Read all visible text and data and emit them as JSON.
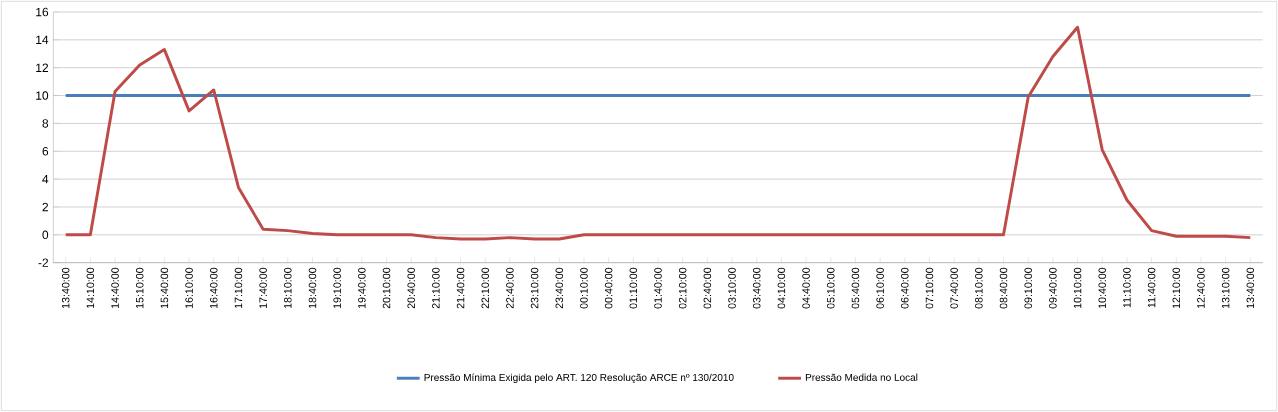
{
  "chart_data": {
    "type": "line",
    "categories": [
      "13:40:00",
      "14:10:00",
      "14:40:00",
      "15:10:00",
      "15:40:00",
      "16:10:00",
      "16:40:00",
      "17:10:00",
      "17:40:00",
      "18:10:00",
      "18:40:00",
      "19:10:00",
      "19:40:00",
      "20:10:00",
      "20:40:00",
      "21:10:00",
      "21:40:00",
      "22:10:00",
      "22:40:00",
      "23:10:00",
      "23:40:00",
      "00:10:00",
      "00:40:00",
      "01:10:00",
      "01:40:00",
      "02:10:00",
      "02:40:00",
      "03:10:00",
      "03:40:00",
      "04:10:00",
      "04:40:00",
      "05:10:00",
      "05:40:00",
      "06:10:00",
      "06:40:00",
      "07:10:00",
      "07:40:00",
      "08:10:00",
      "08:40:00",
      "09:10:00",
      "09:40:00",
      "10:10:00",
      "10:40:00",
      "11:10:00",
      "11:40:00",
      "12:10:00",
      "12:40:00",
      "13:10:00",
      "13:40:00"
    ],
    "series": [
      {
        "name": "Pressão Mínima  Exigida pelo ART. 120 Resolução ARCE nº 130/2010",
        "color": "#4a7ebb",
        "values": [
          10,
          10,
          10,
          10,
          10,
          10,
          10,
          10,
          10,
          10,
          10,
          10,
          10,
          10,
          10,
          10,
          10,
          10,
          10,
          10,
          10,
          10,
          10,
          10,
          10,
          10,
          10,
          10,
          10,
          10,
          10,
          10,
          10,
          10,
          10,
          10,
          10,
          10,
          10,
          10,
          10,
          10,
          10,
          10,
          10,
          10,
          10,
          10,
          10
        ]
      },
      {
        "name": "Pressão Medida no Local",
        "color": "#be4b48",
        "values": [
          0,
          0,
          10.3,
          12.2,
          13.3,
          8.9,
          10.4,
          3.4,
          0.4,
          0.3,
          0.1,
          0,
          0,
          0,
          0,
          -0.2,
          -0.3,
          -0.3,
          -0.2,
          -0.3,
          -0.3,
          0,
          0,
          0,
          0,
          0,
          0,
          0,
          0,
          0,
          0,
          0,
          0,
          0,
          0,
          0,
          0,
          0,
          0,
          9.9,
          12.8,
          14.9,
          6.1,
          2.5,
          0.3,
          -0.1,
          -0.1,
          -0.1,
          -0.2
        ]
      }
    ],
    "ylim": [
      -2,
      16
    ],
    "yticks": [
      -2,
      0,
      2,
      4,
      6,
      8,
      10,
      12,
      14,
      16
    ],
    "grid": "y",
    "legend": "bottom",
    "marker": "none",
    "line_style": "solid"
  }
}
